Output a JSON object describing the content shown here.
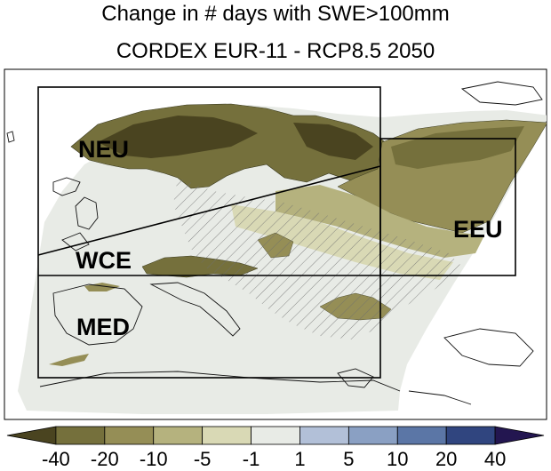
{
  "title": {
    "line1": "Change in # days with SWE>100mm",
    "line2": "CORDEX EUR-11 - RCP8.5 2050"
  },
  "regions": [
    {
      "key": "neu",
      "label": "NEU"
    },
    {
      "key": "wce",
      "label": "WCE"
    },
    {
      "key": "med",
      "label": "MED"
    },
    {
      "key": "eeu",
      "label": "EEU"
    }
  ],
  "colorbar": {
    "bins": [
      {
        "color": "#4a4420"
      },
      {
        "color": "#75703c"
      },
      {
        "color": "#958e56"
      },
      {
        "color": "#b5b27e"
      },
      {
        "color": "#d9d9b5"
      },
      {
        "color": "#e8ebe6"
      },
      {
        "color": "#b2c0d8"
      },
      {
        "color": "#8aa0c3"
      },
      {
        "color": "#5b76a6"
      },
      {
        "color": "#30457f"
      },
      {
        "color": "#231650"
      }
    ],
    "labels": [
      "-40",
      "-20",
      "-10",
      "-5",
      "-1",
      "1",
      "5",
      "10",
      "20",
      "40"
    ]
  },
  "colors": {
    "dark": "#4a4420",
    "mid": "#75703c",
    "olive": "#958e56",
    "light": "#b5b27e",
    "pale": "#d9d9b5",
    "neutral": "#e8ebe6"
  }
}
